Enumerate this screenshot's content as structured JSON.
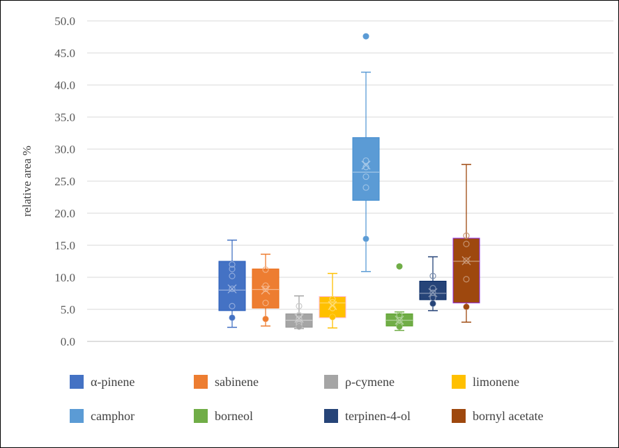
{
  "chart_data": {
    "type": "box",
    "title": "",
    "xlabel": "",
    "ylabel": "relative area %",
    "ylim": [
      0,
      50
    ],
    "y_ticks": [
      "0.0",
      "5.0",
      "10.0",
      "15.0",
      "20.0",
      "25.0",
      "30.0",
      "35.0",
      "40.0",
      "45.0",
      "50.0"
    ],
    "grid": true,
    "legend_position": "bottom",
    "series": [
      {
        "name": "α-pinene",
        "color": "#4472C4",
        "min": 2.2,
        "q1": 4.8,
        "median": 8.0,
        "q3": 12.5,
        "max": 15.8,
        "mean": 8.2,
        "points": [
          3.7,
          5.5,
          8.2,
          10.2,
          11.3,
          12.0
        ],
        "outliers": []
      },
      {
        "name": "sabinene",
        "color": "#ED7D31",
        "min": 2.4,
        "q1": 5.2,
        "median": 8.1,
        "q3": 11.3,
        "max": 13.6,
        "mean": 8.0,
        "points": [
          3.5,
          6.0,
          8.2,
          8.7,
          11.2
        ],
        "outliers": []
      },
      {
        "name": "ρ-cymene",
        "color": "#A5A5A5",
        "min": 2.0,
        "q1": 2.2,
        "median": 3.3,
        "q3": 4.3,
        "max": 7.1,
        "mean": 3.6,
        "points": [
          2.3,
          2.7,
          3.5,
          4.1,
          5.5
        ],
        "outliers": []
      },
      {
        "name": "limonene",
        "color": "#FFC000",
        "min": 2.1,
        "q1": 3.7,
        "median": 6.0,
        "q3": 7.0,
        "max": 10.6,
        "mean": 5.6,
        "points": [
          3.8,
          5.2,
          6.1,
          6.6
        ],
        "outliers": []
      },
      {
        "name": "camphor",
        "color": "#5B9BD5",
        "min": 10.9,
        "q1": 22.0,
        "median": 26.4,
        "q3": 31.8,
        "max": 42.0,
        "mean": 27.5,
        "points": [
          16.0,
          24.0,
          25.7,
          27.2,
          28.2
        ],
        "outliers": [
          47.6
        ]
      },
      {
        "name": "borneol",
        "color": "#70AD47",
        "min": 1.7,
        "q1": 2.4,
        "median": 3.3,
        "q3": 4.3,
        "max": 4.6,
        "mean": 3.3,
        "points": [
          2.3,
          2.6,
          3.3,
          4.1
        ],
        "outliers": [
          11.7
        ]
      },
      {
        "name": "terpinen-4-ol",
        "color": "#264478",
        "min": 4.8,
        "q1": 6.5,
        "median": 7.5,
        "q3": 9.4,
        "max": 13.2,
        "mean": 7.6,
        "points": [
          5.9,
          6.8,
          7.6,
          8.3,
          10.2
        ],
        "outliers": []
      },
      {
        "name": "bornyl acetate",
        "color": "#9E480E",
        "min": 3.0,
        "q1": 6.0,
        "median": 12.5,
        "q3": 16.1,
        "max": 27.6,
        "mean": 12.6,
        "points": [
          5.4,
          9.7,
          12.6,
          15.2,
          16.5
        ],
        "outliers": []
      }
    ]
  }
}
